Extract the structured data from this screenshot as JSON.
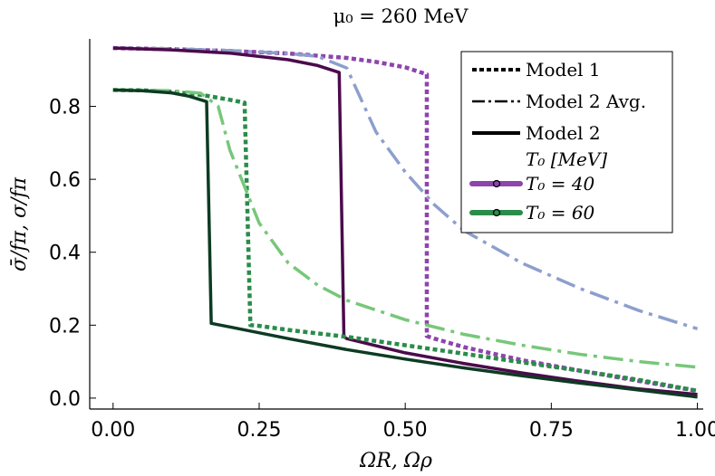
{
  "chart_data": {
    "type": "line",
    "title": "μ₀ = 260 MeV",
    "xlabel": "ΩR,  Ωρ",
    "ylabel": "σ̄/fπ,  σ/fπ",
    "xlim": [
      -0.04,
      1.01
    ],
    "ylim": [
      -0.03,
      0.985
    ],
    "xticks": [
      0.0,
      0.25,
      0.5,
      0.75,
      1.0
    ],
    "xtick_labels": [
      "0.00",
      "0.25",
      "0.50",
      "0.75",
      "1.00"
    ],
    "yticks": [
      0.0,
      0.2,
      0.4,
      0.6,
      0.8
    ],
    "ytick_labels": [
      "0.0",
      "0.2",
      "0.4",
      "0.6",
      "0.8"
    ],
    "grid": false,
    "legend": {
      "placement": "top-right",
      "entries": [
        {
          "label": "Model 1",
          "style": "dotted",
          "color": "#000000"
        },
        {
          "label": "Model 2 Avg.",
          "style": "dashdot",
          "color": "#000000"
        },
        {
          "label": "Model 2",
          "style": "solid",
          "color": "#000000"
        },
        {
          "label": "T₀  [MeV]",
          "style": "none",
          "color": "#000000"
        },
        {
          "label": "T₀ = 40",
          "style": "marker",
          "color": "#8e44ad"
        },
        {
          "label": "T₀ = 60",
          "style": "marker",
          "color": "#2a8c4a"
        }
      ]
    },
    "series": [
      {
        "name": "Model 1, T0=40",
        "style": "dotted",
        "color": "#8e44ad",
        "x": [
          0.0,
          0.1,
          0.2,
          0.3,
          0.4,
          0.45,
          0.5,
          0.537,
          0.537,
          0.55,
          0.6,
          0.7,
          0.8,
          0.9,
          0.95,
          1.0
        ],
        "y": [
          0.96,
          0.957,
          0.952,
          0.945,
          0.933,
          0.922,
          0.907,
          0.888,
          0.17,
          0.163,
          0.14,
          0.104,
          0.075,
          0.047,
          0.033,
          0.02
        ]
      },
      {
        "name": "Model 2 Avg., T0=40",
        "style": "dashdot",
        "color": "#8d9fcc",
        "x": [
          0.0,
          0.1,
          0.2,
          0.3,
          0.35,
          0.4,
          0.45,
          0.5,
          0.55,
          0.6,
          0.7,
          0.8,
          0.9,
          1.0
        ],
        "y": [
          0.96,
          0.958,
          0.953,
          0.945,
          0.937,
          0.905,
          0.73,
          0.62,
          0.53,
          0.46,
          0.37,
          0.3,
          0.24,
          0.19
        ]
      },
      {
        "name": "Model 2, T0=40",
        "style": "solid",
        "color": "#4b0b4b",
        "x": [
          0.0,
          0.1,
          0.2,
          0.3,
          0.35,
          0.387,
          0.395,
          0.4,
          0.5,
          0.6,
          0.7,
          0.8,
          0.9,
          1.0
        ],
        "y": [
          0.96,
          0.955,
          0.946,
          0.928,
          0.912,
          0.893,
          0.168,
          0.163,
          0.124,
          0.095,
          0.069,
          0.046,
          0.025,
          0.01
        ]
      },
      {
        "name": "Model 1, T0=60",
        "style": "dotted",
        "color": "#2a8c4a",
        "x": [
          0.0,
          0.05,
          0.1,
          0.15,
          0.2,
          0.225,
          0.235,
          0.25,
          0.3,
          0.4,
          0.5,
          0.6,
          0.7,
          0.8,
          0.9,
          1.0
        ],
        "y": [
          0.845,
          0.844,
          0.84,
          0.832,
          0.818,
          0.81,
          0.2,
          0.198,
          0.187,
          0.168,
          0.145,
          0.122,
          0.098,
          0.075,
          0.05,
          0.02
        ]
      },
      {
        "name": "Model 2 Avg., T0=60",
        "style": "dashdot",
        "color": "#77c77a",
        "x": [
          0.0,
          0.1,
          0.15,
          0.18,
          0.2,
          0.25,
          0.3,
          0.35,
          0.4,
          0.5,
          0.6,
          0.7,
          0.8,
          0.9,
          1.0
        ],
        "y": [
          0.845,
          0.843,
          0.836,
          0.8,
          0.68,
          0.48,
          0.37,
          0.31,
          0.268,
          0.215,
          0.175,
          0.145,
          0.12,
          0.1,
          0.085
        ]
      },
      {
        "name": "Model 2, T0=60",
        "style": "solid",
        "color": "#0d3b23",
        "x": [
          0.0,
          0.05,
          0.1,
          0.13,
          0.16,
          0.168,
          0.2,
          0.3,
          0.4,
          0.5,
          0.6,
          0.7,
          0.8,
          0.9,
          1.0
        ],
        "y": [
          0.845,
          0.843,
          0.837,
          0.828,
          0.813,
          0.205,
          0.195,
          0.163,
          0.133,
          0.107,
          0.083,
          0.061,
          0.041,
          0.022,
          0.003
        ]
      }
    ]
  }
}
